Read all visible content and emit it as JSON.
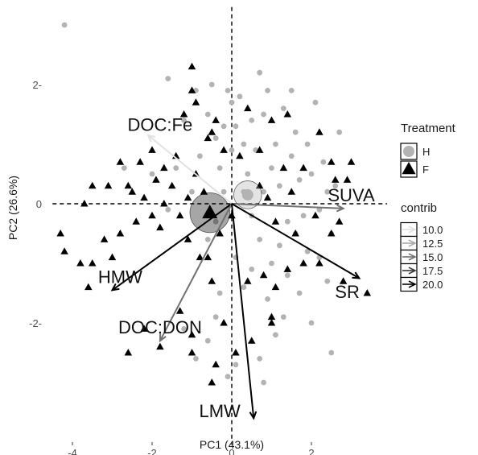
{
  "chart_data": {
    "type": "scatter",
    "title": "",
    "xlabel": "PC1 (43.1%)",
    "ylabel": "PC2 (26.6%)",
    "xlim": [
      -4.5,
      3.9
    ],
    "ylim": [
      -4.0,
      3.3
    ],
    "x_ticks": [
      -4,
      -2,
      0,
      2
    ],
    "y_ticks": [
      -2,
      0,
      2
    ],
    "x_tick_labels": [
      "-4",
      "-2",
      "0",
      "2"
    ],
    "y_tick_labels": [
      "-2-",
      "0",
      "2-"
    ],
    "grid": false,
    "reference_lines": [
      {
        "axis": "x",
        "value": 0,
        "style": "dashed"
      },
      {
        "axis": "y",
        "value": 0,
        "style": "dashed"
      }
    ],
    "colors": {
      "H": "#b3b3b3",
      "F": "#000000"
    },
    "series": [
      {
        "name": "H",
        "marker": "circle",
        "points": [
          [
            -4.2,
            3.0
          ],
          [
            -1.6,
            2.1
          ],
          [
            -1.2,
            1.4
          ],
          [
            -0.9,
            1.9
          ],
          [
            -0.8,
            0.8
          ],
          [
            -0.6,
            1.5
          ],
          [
            -0.5,
            2.0
          ],
          [
            -0.4,
            1.1
          ],
          [
            -0.3,
            0.6
          ],
          [
            -0.2,
            1.3
          ],
          [
            -0.1,
            1.9
          ],
          [
            0.0,
            1.7
          ],
          [
            0.0,
            0.9
          ],
          [
            0.1,
            1.3
          ],
          [
            0.2,
            1.8
          ],
          [
            0.3,
            0.2
          ],
          [
            0.3,
            1.0
          ],
          [
            0.4,
            0.5
          ],
          [
            0.5,
            -0.2
          ],
          [
            0.5,
            1.4
          ],
          [
            0.6,
            0.9
          ],
          [
            0.7,
            2.2
          ],
          [
            0.8,
            0.2
          ],
          [
            0.8,
            1.5
          ],
          [
            0.9,
            1.9
          ],
          [
            1.0,
            0.6
          ],
          [
            1.1,
            1.0
          ],
          [
            1.2,
            0.3
          ],
          [
            1.3,
            1.6
          ],
          [
            1.4,
            -0.3
          ],
          [
            1.5,
            0.8
          ],
          [
            1.6,
            1.2
          ],
          [
            1.7,
            0.4
          ],
          [
            1.8,
            -0.2
          ],
          [
            1.9,
            1.0
          ],
          [
            2.0,
            0.5
          ],
          [
            2.1,
            1.7
          ],
          [
            2.2,
            -0.1
          ],
          [
            2.3,
            0.7
          ],
          [
            2.4,
            0.2
          ],
          [
            2.5,
            -0.5
          ],
          [
            2.6,
            0.3
          ],
          [
            2.7,
            1.2
          ],
          [
            -2.7,
            0.6
          ],
          [
            -2.0,
            0.5
          ],
          [
            -1.6,
            -0.1
          ],
          [
            -1.4,
            0.6
          ],
          [
            -1.0,
            0.2
          ],
          [
            -0.6,
            -0.6
          ],
          [
            -0.4,
            -0.3
          ],
          [
            -0.2,
            0.2
          ],
          [
            0.1,
            -0.9
          ],
          [
            0.3,
            -1.4
          ],
          [
            0.5,
            -1.1
          ],
          [
            0.7,
            -0.6
          ],
          [
            0.9,
            -1.6
          ],
          [
            1.0,
            -1.0
          ],
          [
            1.2,
            -0.7
          ],
          [
            1.4,
            -1.2
          ],
          [
            1.6,
            -0.5
          ],
          [
            1.7,
            -1.5
          ],
          [
            1.9,
            -0.8
          ],
          [
            2.0,
            -2.0
          ],
          [
            2.2,
            -0.9
          ],
          [
            2.4,
            -1.3
          ],
          [
            2.5,
            -2.5
          ],
          [
            1.1,
            -2.2
          ],
          [
            0.7,
            -2.6
          ],
          [
            0.8,
            -3.0
          ],
          [
            -0.3,
            -1.5
          ],
          [
            -0.6,
            -2.3
          ],
          [
            -0.9,
            -2.6
          ],
          [
            -1.2,
            -2.1
          ],
          [
            -0.1,
            -2.9
          ],
          [
            0.1,
            -2.7
          ],
          [
            1.3,
            -1.9
          ],
          [
            1.5,
            1.9
          ],
          [
            -0.4,
            -1.9
          ]
        ]
      },
      {
        "name": "F",
        "marker": "triangle",
        "points": [
          [
            -1.0,
            2.3
          ],
          [
            -1.0,
            1.9
          ],
          [
            -0.9,
            1.7
          ],
          [
            -1.2,
            1.5
          ],
          [
            -0.6,
            1.1
          ],
          [
            -0.4,
            1.4
          ],
          [
            -0.5,
            1.2
          ],
          [
            -0.2,
            0.9
          ],
          [
            0.2,
            0.8
          ],
          [
            0.4,
            1.6
          ],
          [
            0.7,
            0.9
          ],
          [
            1.0,
            1.4
          ],
          [
            1.4,
            1.5
          ],
          [
            2.2,
            1.2
          ],
          [
            2.5,
            0.7
          ],
          [
            2.9,
            0.4
          ],
          [
            3.0,
            0.7
          ],
          [
            2.6,
            0.4
          ],
          [
            1.8,
            0.6
          ],
          [
            1.5,
            0.2
          ],
          [
            1.3,
            0.6
          ],
          [
            0.9,
            0.1
          ],
          [
            0.7,
            0.3
          ],
          [
            1.1,
            -0.3
          ],
          [
            1.6,
            -0.5
          ],
          [
            2.1,
            -0.2
          ],
          [
            2.7,
            -0.3
          ],
          [
            3.4,
            -1.5
          ],
          [
            2.8,
            -1.3
          ],
          [
            2.5,
            -0.5
          ],
          [
            2.2,
            -1.0
          ],
          [
            1.8,
            -1.0
          ],
          [
            1.4,
            -1.1
          ],
          [
            1.1,
            -1.4
          ],
          [
            0.8,
            -1.2
          ],
          [
            0.4,
            -1.3
          ],
          [
            1.0,
            -1.9
          ],
          [
            1.0,
            -2.0
          ],
          [
            0.5,
            -2.3
          ],
          [
            0.1,
            -2.5
          ],
          [
            -0.2,
            -2.0
          ],
          [
            -0.5,
            -1.3
          ],
          [
            -0.8,
            -0.9
          ],
          [
            -1.1,
            -0.6
          ],
          [
            -1.3,
            -0.2
          ],
          [
            -1.5,
            0.3
          ],
          [
            -1.7,
            0.0
          ],
          [
            -1.8,
            -0.4
          ],
          [
            -2.0,
            -0.2
          ],
          [
            -2.2,
            0.1
          ],
          [
            -2.4,
            -0.3
          ],
          [
            -2.6,
            0.3
          ],
          [
            -2.8,
            -0.5
          ],
          [
            -3.0,
            -0.9
          ],
          [
            -3.2,
            -0.6
          ],
          [
            -3.5,
            0.3
          ],
          [
            -3.7,
            0.0
          ],
          [
            -3.5,
            -1.0
          ],
          [
            -3.8,
            -1.0
          ],
          [
            -3.6,
            -1.4
          ],
          [
            -4.3,
            -0.5
          ],
          [
            -4.2,
            -0.8
          ],
          [
            -2.6,
            -2.5
          ],
          [
            -2.2,
            -2.1
          ],
          [
            -1.3,
            -1.8
          ],
          [
            -1.0,
            -2.2
          ],
          [
            -1.0,
            -2.5
          ],
          [
            -0.4,
            -2.7
          ],
          [
            -0.5,
            -3.0
          ],
          [
            -1.8,
            -2.4
          ],
          [
            -2.0,
            0.9
          ],
          [
            -1.7,
            0.6
          ],
          [
            -0.7,
            0.2
          ],
          [
            -0.9,
            0.5
          ],
          [
            -0.3,
            -0.5
          ],
          [
            -0.6,
            -0.9
          ],
          [
            0.0,
            -0.2
          ],
          [
            -1.1,
            0.1
          ],
          [
            -1.9,
            0.4
          ],
          [
            -1.4,
            0.8
          ],
          [
            -2.3,
            0.7
          ],
          [
            -2.8,
            0.7
          ],
          [
            -2.5,
            0.2
          ],
          [
            -3.1,
            0.3
          ]
        ]
      }
    ],
    "group_means": [
      {
        "name": "H",
        "x": 0.4,
        "y": 0.15,
        "radius": 0.35
      },
      {
        "name": "F",
        "x": -0.55,
        "y": -0.15,
        "radius": 0.5
      }
    ],
    "variables": [
      {
        "name": "DOC:Fe",
        "x": -2.1,
        "y": 1.15,
        "contrib": 10.0,
        "label_x": -1.8,
        "label_y": 1.3
      },
      {
        "name": "SUVA",
        "x": 2.8,
        "y": -0.08,
        "contrib": 15.0,
        "label_x": 3.0,
        "label_y": 0.12
      },
      {
        "name": "SR",
        "x": 3.2,
        "y": -1.25,
        "contrib": 20.0,
        "label_x": 2.9,
        "label_y": -1.5
      },
      {
        "name": "HMW",
        "x": -3.0,
        "y": -1.45,
        "contrib": 20.0,
        "label_x": -2.8,
        "label_y": -1.25
      },
      {
        "name": "DOC:DON",
        "x": -1.8,
        "y": -2.3,
        "contrib": 15.0,
        "label_x": -1.8,
        "label_y": -2.1
      },
      {
        "name": "LMW",
        "x": 0.55,
        "y": -3.6,
        "contrib": 20.0,
        "label_x": -0.3,
        "label_y": -3.5
      }
    ],
    "legend": {
      "position": "right",
      "treatment": {
        "title": "Treatment",
        "entries": [
          "H",
          "F"
        ]
      },
      "contrib": {
        "title": "contrib",
        "entries": [
          "10.0",
          "12.5",
          "15.0",
          "17.5",
          "20.0"
        ]
      }
    }
  }
}
